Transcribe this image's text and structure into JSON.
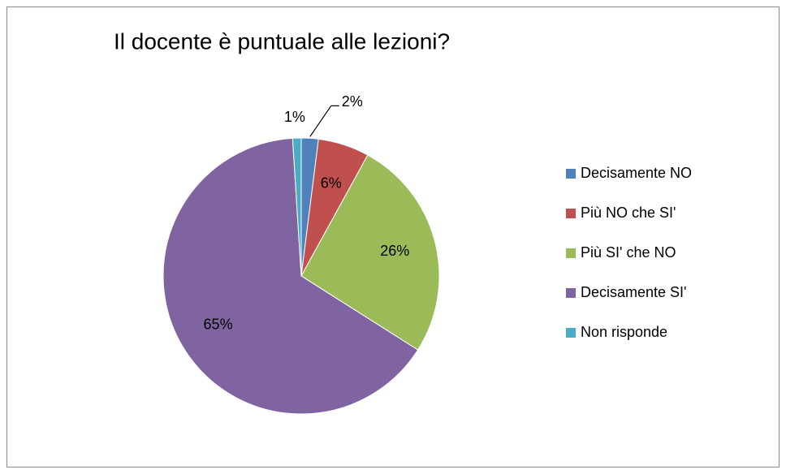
{
  "chart_data": {
    "type": "pie",
    "title": "Il docente è puntuale alle lezioni?",
    "categories": [
      "Decisamente NO",
      "Più NO che SI'",
      "Più SI' che NO",
      "Decisamente SI'",
      "Non risponde"
    ],
    "values": [
      2,
      6,
      26,
      65,
      1
    ],
    "value_labels": [
      "2%",
      "6%",
      "26%",
      "65%",
      "1%"
    ],
    "colors": [
      "#4f81bd",
      "#c0504d",
      "#9bbb59",
      "#8064a2",
      "#4bacc6"
    ],
    "legend": "right"
  }
}
